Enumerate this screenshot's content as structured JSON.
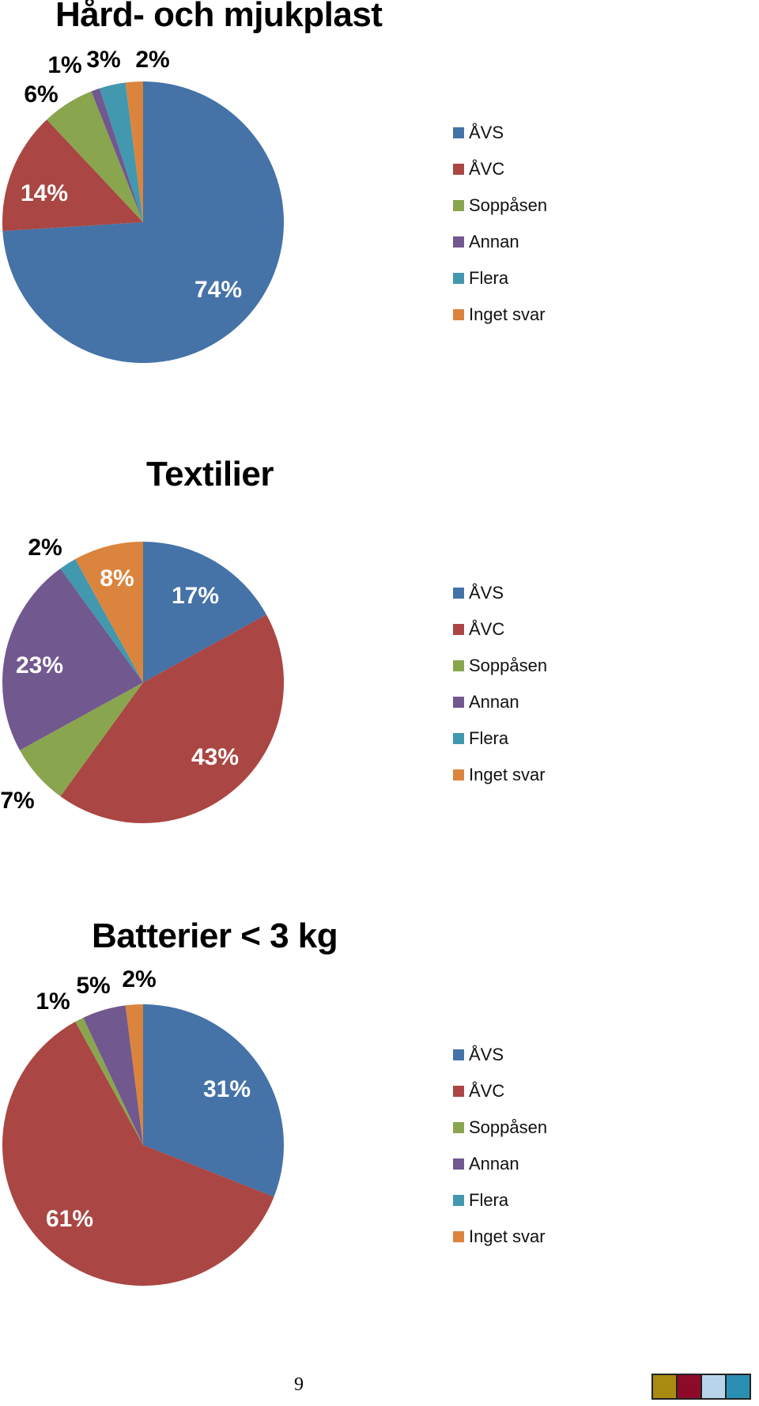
{
  "chart_data": [
    {
      "type": "pie",
      "title": "Hård- och mjukplast",
      "categories": [
        "ÅVS",
        "ÅVC",
        "Soppåsen",
        "Annan",
        "Flera",
        "Inget svar"
      ],
      "values": [
        74,
        14,
        6,
        1,
        3,
        2
      ],
      "labels": [
        "74%",
        "14%",
        "6%",
        "1%",
        "3%",
        "2%"
      ],
      "legend_position": "right"
    },
    {
      "type": "pie",
      "title": "Textilier",
      "categories": [
        "ÅVS",
        "ÅVC",
        "Soppåsen",
        "Annan",
        "Flera",
        "Inget svar"
      ],
      "values": [
        17,
        43,
        7,
        23,
        2,
        8
      ],
      "labels": [
        "17%",
        "43%",
        "7%",
        "23%",
        "2%",
        "8%"
      ],
      "legend_position": "right"
    },
    {
      "type": "pie",
      "title": "Batterier < 3 kg",
      "categories": [
        "ÅVS",
        "ÅVC",
        "Soppåsen",
        "Annan",
        "Flera",
        "Inget svar"
      ],
      "values": [
        31,
        61,
        1,
        5,
        0,
        2
      ],
      "labels": [
        "31%",
        "61%",
        "1%",
        "5%",
        "",
        "2%"
      ],
      "legend_position": "right"
    }
  ],
  "colors": [
    "#4572A7",
    "#AA4643",
    "#89A54E",
    "#71588F",
    "#4198AF",
    "#DB843D"
  ],
  "legend": [
    "ÅVS",
    "ÅVC",
    "Soppåsen",
    "Annan",
    "Flera",
    "Inget svar"
  ],
  "page": {
    "number": "9",
    "footer_colors": [
      "#A98B12",
      "#8E0A2A",
      "#B7D4EA",
      "#2B8FB4"
    ]
  }
}
